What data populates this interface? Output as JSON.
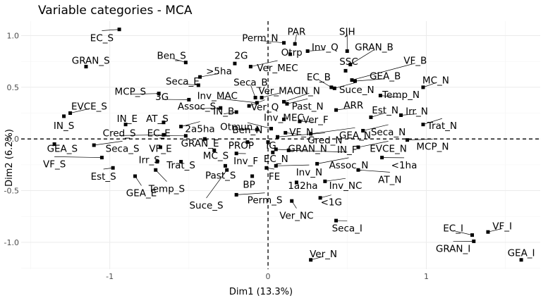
{
  "chart_data": {
    "type": "scatter",
    "title": "Variable categories - MCA",
    "xlabel": "Dim1 (13.3%)",
    "ylabel": "Dim2 (6.2%)",
    "xlim": [
      -1.56,
      1.72
    ],
    "ylim": [
      -1.26,
      1.14
    ],
    "xticks": [
      -1,
      0,
      1
    ],
    "yticks": [
      -1.0,
      -0.5,
      0.0,
      0.5,
      1.0
    ],
    "xtick_labels": [
      "-1",
      "0",
      "1"
    ],
    "ytick_labels": [
      "-1.0",
      "-0.5",
      "0.0",
      "0.5",
      "1.0"
    ],
    "grid": true,
    "reference_lines": {
      "x": 0,
      "y": 0,
      "style": "dashed"
    },
    "points": [
      {
        "name": "EC_S",
        "x": -0.94,
        "y": 1.06,
        "lx": -1.05,
        "ly": 0.98
      },
      {
        "name": "GRAN_S",
        "x": -1.15,
        "y": 0.7,
        "lx": -1.12,
        "ly": 0.76
      },
      {
        "name": "Ben_S",
        "x": -0.52,
        "y": 0.74,
        "lx": -0.61,
        "ly": 0.81
      },
      {
        "name": "2G",
        "x": -0.21,
        "y": 0.73,
        "lx": -0.17,
        "ly": 0.81
      },
      {
        "name": "Perm_N",
        "x": 0.1,
        "y": 0.93,
        "lx": -0.05,
        "ly": 0.98
      },
      {
        "name": "PAR",
        "x": 0.17,
        "y": 0.92,
        "lx": 0.18,
        "ly": 1.04
      },
      {
        "name": "SJH",
        "x": 0.5,
        "y": 0.85,
        "lx": 0.5,
        "ly": 1.04
      },
      {
        "name": "Inv_Q",
        "x": 0.25,
        "y": 0.85,
        "lx": 0.36,
        "ly": 0.89
      },
      {
        "name": "Otrp",
        "x": 0.14,
        "y": 0.82,
        "lx": 0.15,
        "ly": 0.84
      },
      {
        "name": "GRAN_B",
        "x": 0.52,
        "y": 0.72,
        "lx": 0.67,
        "ly": 0.89
      },
      {
        "name": "SSC",
        "x": 0.49,
        "y": 0.66,
        "lx": 0.51,
        "ly": 0.75
      },
      {
        "name": "VF_B",
        "x": 0.53,
        "y": 0.57,
        "lx": 0.93,
        "ly": 0.76
      },
      {
        "name": "Ver_MEC",
        "x": -0.11,
        "y": 0.7,
        "lx": 0.06,
        "ly": 0.69
      },
      {
        "name": ">5ha",
        "x": -0.43,
        "y": 0.6,
        "lx": -0.31,
        "ly": 0.66
      },
      {
        "name": "Seca_E",
        "x": -0.44,
        "y": 0.52,
        "lx": -0.54,
        "ly": 0.56
      },
      {
        "name": "EC_B",
        "x": 0.4,
        "y": 0.5,
        "lx": 0.32,
        "ly": 0.6
      },
      {
        "name": "GEA_B",
        "x": 0.55,
        "y": 0.56,
        "lx": 0.74,
        "ly": 0.61
      },
      {
        "name": "MC_N",
        "x": 0.98,
        "y": 0.5,
        "lx": 1.06,
        "ly": 0.57
      },
      {
        "name": "Seca_B",
        "x": -0.08,
        "y": 0.4,
        "lx": -0.11,
        "ly": 0.55
      },
      {
        "name": "Suce_N",
        "x": 0.42,
        "y": 0.49,
        "lx": 0.56,
        "ly": 0.48
      },
      {
        "name": "Temp_N",
        "x": 0.71,
        "y": 0.42,
        "lx": 0.84,
        "ly": 0.43
      },
      {
        "name": "MCP_S",
        "x": -0.69,
        "y": 0.44,
        "lx": -0.87,
        "ly": 0.46
      },
      {
        "name": "Inv_MAC",
        "x": -0.07,
        "y": 0.35,
        "lx": -0.32,
        "ly": 0.42
      },
      {
        "name": "Ver_MAC",
        "x": -0.04,
        "y": 0.4,
        "lx": 0.07,
        "ly": 0.47
      },
      {
        "name": "IN_N",
        "x": 0.1,
        "y": 0.36,
        "lx": 0.26,
        "ly": 0.47
      },
      {
        "name": "3G",
        "x": -0.5,
        "y": 0.38,
        "lx": -0.67,
        "ly": 0.41
      },
      {
        "name": "Assoc_S",
        "x": -0.3,
        "y": 0.3,
        "lx": -0.45,
        "ly": 0.32
      },
      {
        "name": "Ver_Q",
        "x": -0.12,
        "y": 0.32,
        "lx": -0.02,
        "ly": 0.31
      },
      {
        "name": "Past_N",
        "x": 0.12,
        "y": 0.34,
        "lx": 0.25,
        "ly": 0.32
      },
      {
        "name": "ARR",
        "x": 0.43,
        "y": 0.28,
        "lx": 0.54,
        "ly": 0.33
      },
      {
        "name": "IN_B",
        "x": -0.2,
        "y": 0.26,
        "lx": -0.28,
        "ly": 0.27
      },
      {
        "name": "EVCE_S",
        "x": -1.25,
        "y": 0.25,
        "lx": -1.13,
        "ly": 0.32
      },
      {
        "name": "Est_N",
        "x": 0.65,
        "y": 0.21,
        "lx": 0.74,
        "ly": 0.28
      },
      {
        "name": "Irr_N",
        "x": 0.84,
        "y": 0.23,
        "lx": 0.94,
        "ly": 0.27
      },
      {
        "name": "Inv_MEC",
        "x": 0.1,
        "y": 0.19,
        "lx": 0.1,
        "ly": 0.21
      },
      {
        "name": "Ver_F",
        "x": 0.2,
        "y": 0.17,
        "lx": 0.3,
        "ly": 0.19
      },
      {
        "name": "IN_E",
        "x": -0.9,
        "y": 0.14,
        "lx": -0.89,
        "ly": 0.2
      },
      {
        "name": "AT_S",
        "x": -0.66,
        "y": 0.16,
        "lx": -0.7,
        "ly": 0.2
      },
      {
        "name": "IN_S",
        "x": -1.29,
        "y": 0.22,
        "lx": -1.29,
        "ly": 0.13
      },
      {
        "name": "Trat_N",
        "x": 0.98,
        "y": 0.14,
        "lx": 1.1,
        "ly": 0.13
      },
      {
        "name": "2a5ha",
        "x": -0.55,
        "y": 0.12,
        "lx": -0.43,
        "ly": 0.1
      },
      {
        "name": "Otmun",
        "x": -0.07,
        "y": 0.09,
        "lx": -0.2,
        "ly": 0.12
      },
      {
        "name": "Ben_N",
        "x": 0.02,
        "y": 0.1,
        "lx": -0.13,
        "ly": 0.09
      },
      {
        "name": "VF_N",
        "x": 0.11,
        "y": 0.06,
        "lx": 0.21,
        "ly": 0.07
      },
      {
        "name": "GEA_N",
        "x": 0.27,
        "y": 0.05,
        "lx": 0.55,
        "ly": 0.04
      },
      {
        "name": "Seca_N",
        "x": 0.6,
        "y": 0.08,
        "lx": 0.76,
        "ly": 0.07
      },
      {
        "name": "Cred_S",
        "x": -0.66,
        "y": 0.04,
        "lx": -0.94,
        "ly": 0.06
      },
      {
        "name": "EC_E",
        "x": -0.52,
        "y": 0.03,
        "lx": -0.69,
        "ly": 0.06
      },
      {
        "name": "Gred_N",
        "x": 0.06,
        "y": 0.02,
        "lx": 0.36,
        "ly": -0.01
      },
      {
        "name": "GRAN_E",
        "x": -0.4,
        "y": 0.0,
        "lx": -0.43,
        "ly": -0.04
      },
      {
        "name": "PROP",
        "x": -0.13,
        "y": -0.03,
        "lx": -0.17,
        "ly": -0.06
      },
      {
        "name": "IG",
        "x": 0.0,
        "y": -0.03,
        "lx": 0.02,
        "ly": -0.06
      },
      {
        "name": "GEA_S",
        "x": -1.35,
        "y": -0.05,
        "lx": -1.3,
        "ly": -0.09
      },
      {
        "name": "Seca_S",
        "x": -1.1,
        "y": -0.06,
        "lx": -0.92,
        "ly": -0.09
      },
      {
        "name": "VF_E",
        "x": -0.68,
        "y": -0.08,
        "lx": -0.68,
        "ly": -0.09
      },
      {
        "name": "GRAN_N",
        "x": 0.05,
        "y": -0.1,
        "lx": 0.25,
        "ly": -0.09
      },
      {
        "name": "IN_F",
        "x": 0.13,
        "y": -0.11,
        "lx": 0.5,
        "ly": -0.1
      },
      {
        "name": "EVCE_N",
        "x": 0.57,
        "y": -0.08,
        "lx": 0.76,
        "ly": -0.09
      },
      {
        "name": "MCP_N",
        "x": 0.88,
        "y": -0.01,
        "lx": 1.04,
        "ly": -0.07
      },
      {
        "name": "MC_S",
        "x": -0.34,
        "y": -0.11,
        "lx": -0.33,
        "ly": -0.16
      },
      {
        "name": "Inv_F",
        "x": -0.2,
        "y": -0.14,
        "lx": -0.14,
        "ly": -0.21
      },
      {
        "name": "EC_N",
        "x": 0.03,
        "y": -0.13,
        "lx": 0.05,
        "ly": -0.19
      },
      {
        "name": "VF_S",
        "x": -1.05,
        "y": -0.18,
        "lx": -1.35,
        "ly": -0.24
      },
      {
        "name": "<1ha",
        "x": 0.72,
        "y": -0.18,
        "lx": 0.86,
        "ly": -0.25
      },
      {
        "name": "Trat_S",
        "x": -0.55,
        "y": -0.22,
        "lx": -0.55,
        "ly": -0.25
      },
      {
        "name": "Irr_S",
        "x": -0.7,
        "y": -0.22,
        "lx": -0.75,
        "ly": -0.2
      },
      {
        "name": "Assoc_N",
        "x": 0.31,
        "y": -0.24,
        "lx": 0.51,
        "ly": -0.25
      },
      {
        "name": "Inv_N",
        "x": 0.05,
        "y": -0.26,
        "lx": 0.26,
        "ly": -0.32
      },
      {
        "name": "Est_S",
        "x": -0.98,
        "y": -0.28,
        "lx": -1.04,
        "ly": -0.36
      },
      {
        "name": "Past_S",
        "x": -0.27,
        "y": -0.26,
        "lx": -0.3,
        "ly": -0.35
      },
      {
        "name": "FE",
        "x": -0.01,
        "y": -0.28,
        "lx": 0.04,
        "ly": -0.36
      },
      {
        "name": "AT_N",
        "x": 0.57,
        "y": -0.3,
        "lx": 0.77,
        "ly": -0.39
      },
      {
        "name": "Inv_NC",
        "x": 0.36,
        "y": -0.41,
        "lx": 0.49,
        "ly": -0.45
      },
      {
        "name": "1a2ha",
        "x": 0.18,
        "y": -0.42,
        "lx": 0.22,
        "ly": -0.45
      },
      {
        "name": "BP",
        "x": -0.1,
        "y": -0.36,
        "lx": -0.12,
        "ly": -0.44
      },
      {
        "name": "Temp_S",
        "x": -0.71,
        "y": -0.3,
        "lx": -0.64,
        "ly": -0.48
      },
      {
        "name": "GEA_E",
        "x": -0.84,
        "y": -0.36,
        "lx": -0.8,
        "ly": -0.52
      },
      {
        "name": "<1G",
        "x": 0.33,
        "y": -0.57,
        "lx": 0.4,
        "ly": -0.61
      },
      {
        "name": "Perm_S",
        "x": -0.2,
        "y": -0.54,
        "lx": -0.02,
        "ly": -0.59
      },
      {
        "name": "Suce_S",
        "x": -0.26,
        "y": -0.3,
        "lx": -0.39,
        "ly": -0.64
      },
      {
        "name": "Ver_NC",
        "x": 0.15,
        "y": -0.6,
        "lx": 0.18,
        "ly": -0.74
      },
      {
        "name": "Seca_I",
        "x": 0.43,
        "y": -0.79,
        "lx": 0.5,
        "ly": -0.86
      },
      {
        "name": "EC_I",
        "x": 1.29,
        "y": -0.93,
        "lx": 1.17,
        "ly": -0.86
      },
      {
        "name": "VF_I",
        "x": 1.39,
        "y": -0.9,
        "lx": 1.48,
        "ly": -0.84
      },
      {
        "name": "GRAN_I",
        "x": 1.3,
        "y": -0.99,
        "lx": 1.17,
        "ly": -1.06
      },
      {
        "name": "GEA_I",
        "x": 1.6,
        "y": -1.17,
        "lx": 1.6,
        "ly": -1.1
      },
      {
        "name": "Ver_N",
        "x": 0.27,
        "y": -1.17,
        "lx": 0.35,
        "ly": -1.11
      }
    ]
  }
}
